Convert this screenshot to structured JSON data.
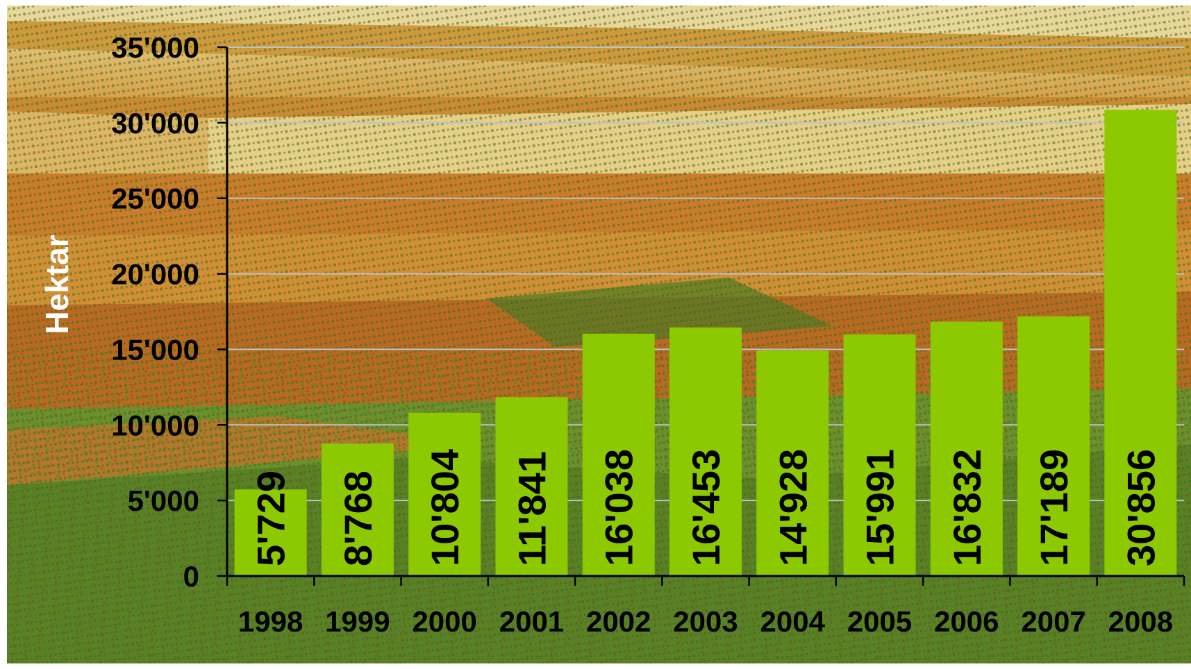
{
  "chart_data": {
    "type": "bar",
    "categories": [
      "1998",
      "1999",
      "2000",
      "2001",
      "2002",
      "2003",
      "2004",
      "2005",
      "2006",
      "2007",
      "2008"
    ],
    "values": [
      5729,
      8768,
      10804,
      11841,
      16038,
      16453,
      14928,
      15991,
      16832,
      17189,
      30856
    ],
    "value_labels": [
      "5'729",
      "8'768",
      "10'804",
      "11'841",
      "16'038",
      "16'453",
      "14'928",
      "15'991",
      "16'832",
      "17'189",
      "30'856"
    ],
    "ylabel": "Hektar",
    "ylim": [
      0,
      35000
    ],
    "yticks": [
      0,
      5000,
      10000,
      15000,
      20000,
      25000,
      30000,
      35000
    ],
    "ytick_labels": [
      "0",
      "5'000",
      "10'000",
      "15'000",
      "20'000",
      "25'000",
      "30'000",
      "35'000"
    ],
    "grid": true,
    "legend": "none",
    "bar_label_orientation": "vertical",
    "background": "photo of vineyard fields"
  },
  "colors": {
    "bar": "#8dc900",
    "label_text": "#000000",
    "axis_title_text": "#ffffff",
    "gridline": "#bfc3c6",
    "axis": "#000000",
    "field_orange": "#d08a2c",
    "field_green": "#5e8a2a",
    "field_sand": "#e7cf84"
  }
}
